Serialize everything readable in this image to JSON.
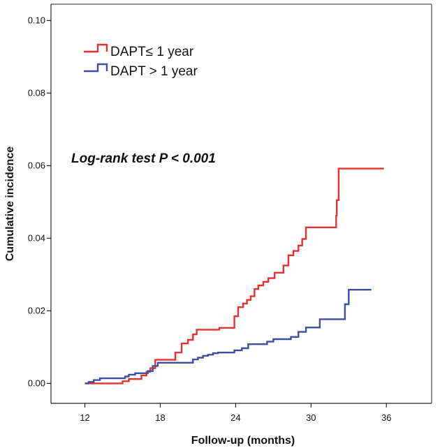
{
  "chart_data": {
    "type": "line",
    "step": true,
    "title": "",
    "xlabel": "Follow-up (months)",
    "ylabel": "Cumulative incidence",
    "xlim": [
      9.3,
      39.6
    ],
    "ylim": [
      -0.0055,
      0.1045
    ],
    "x_ticks": [
      12,
      18,
      24,
      30,
      36
    ],
    "x_tick_labels": [
      "12",
      "18",
      "24",
      "30",
      "36"
    ],
    "y_ticks": [
      0.0,
      0.02,
      0.04,
      0.06,
      0.08,
      0.1
    ],
    "y_tick_labels": [
      "0.00",
      "0.02",
      "0.04",
      "0.06",
      "0.08",
      "0.10"
    ],
    "grid": false,
    "legend_position": "top-left",
    "annotation": "Log-rank test P < 0.001",
    "series": [
      {
        "name": "DAPT≤ 1 year",
        "color": "#e8312f",
        "x": [
          12.0,
          15.0,
          15.5,
          16.5,
          16.9,
          17.2,
          17.6,
          19.2,
          19.7,
          20.2,
          20.6,
          20.9,
          22.7,
          23.9,
          24.2,
          24.6,
          24.9,
          25.2,
          25.5,
          25.8,
          26.2,
          26.6,
          27.1,
          27.8,
          28.2,
          28.6,
          29.0,
          29.3,
          29.6,
          32.0,
          32.05,
          32.2,
          35.8
        ],
        "y": [
          0.0,
          0.0006,
          0.0012,
          0.0022,
          0.0032,
          0.0042,
          0.0065,
          0.0085,
          0.011,
          0.012,
          0.0135,
          0.0148,
          0.0153,
          0.0185,
          0.021,
          0.022,
          0.023,
          0.024,
          0.026,
          0.027,
          0.028,
          0.029,
          0.0305,
          0.0325,
          0.0353,
          0.0365,
          0.038,
          0.0398,
          0.043,
          0.0462,
          0.0505,
          0.0592,
          0.0592
        ]
      },
      {
        "name": "DAPT > 1 year",
        "color": "#3a4ea6",
        "x": [
          12.0,
          12.3,
          12.7,
          13.2,
          15.2,
          15.5,
          16.0,
          17.0,
          17.4,
          17.8,
          20.6,
          21.0,
          21.4,
          21.8,
          22.2,
          22.6,
          23.9,
          24.5,
          25.0,
          26.5,
          27.0,
          28.4,
          29.0,
          29.6,
          30.7,
          32.7,
          33.0,
          34.8
        ],
        "y": [
          0.0,
          0.0004,
          0.0009,
          0.0014,
          0.0019,
          0.0024,
          0.0028,
          0.0034,
          0.0048,
          0.0057,
          0.0066,
          0.0071,
          0.0076,
          0.0079,
          0.0083,
          0.0085,
          0.0091,
          0.0097,
          0.0108,
          0.0115,
          0.0122,
          0.0128,
          0.0142,
          0.0154,
          0.0177,
          0.0218,
          0.0258,
          0.0258
        ]
      }
    ]
  }
}
